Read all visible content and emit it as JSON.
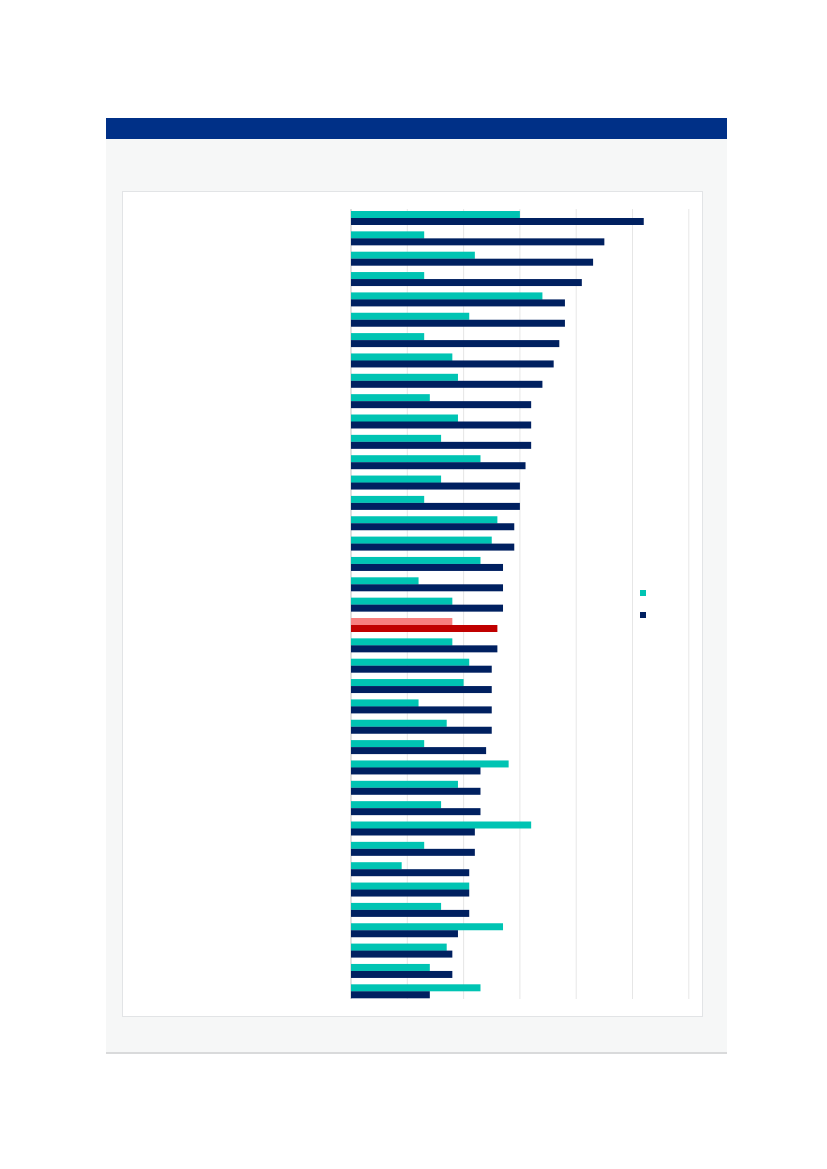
{
  "colors": {
    "header": "#003087",
    "panel": "#f6f7f7",
    "series_a": "#00c4b3",
    "series_b": "#002060",
    "highlight_a": "#f77f7f",
    "highlight_b": "#c00000",
    "grid": "#e6e6e6"
  },
  "chart_data": {
    "type": "bar",
    "orientation": "horizontal",
    "grid": true,
    "legend_position": "right",
    "highlight_index": 20,
    "xlim": [
      0,
      6
    ],
    "categories": [
      "",
      "",
      "",
      "",
      "",
      "",
      "",
      "",
      "",
      "",
      "",
      "",
      "",
      "",
      "",
      "",
      "",
      "",
      "",
      "",
      "",
      "",
      "",
      "",
      "",
      "",
      "",
      "",
      "",
      "",
      "",
      "",
      "",
      "",
      "",
      "",
      "",
      "",
      ""
    ],
    "series": [
      {
        "values": [
          3.0,
          1.3,
          2.2,
          1.3,
          3.4,
          2.1,
          1.3,
          1.8,
          1.9,
          1.4,
          1.9,
          1.6,
          2.3,
          1.6,
          1.3,
          2.6,
          2.5,
          2.3,
          1.2,
          1.8,
          1.8,
          1.8,
          2.1,
          2.0,
          1.2,
          1.7,
          1.3,
          2.8,
          1.9,
          1.6,
          3.2,
          1.3,
          0.9,
          2.1,
          1.6,
          2.7,
          1.7,
          1.4,
          2.3
        ]
      },
      {
        "values": [
          5.2,
          4.5,
          4.3,
          4.1,
          3.8,
          3.8,
          3.7,
          3.6,
          3.4,
          3.2,
          3.2,
          3.2,
          3.1,
          3.0,
          3.0,
          2.9,
          2.9,
          2.7,
          2.7,
          2.7,
          2.6,
          2.6,
          2.5,
          2.5,
          2.5,
          2.5,
          2.4,
          2.3,
          2.3,
          2.3,
          2.2,
          2.2,
          2.1,
          2.1,
          2.1,
          1.9,
          1.8,
          1.8,
          1.4
        ]
      }
    ]
  }
}
